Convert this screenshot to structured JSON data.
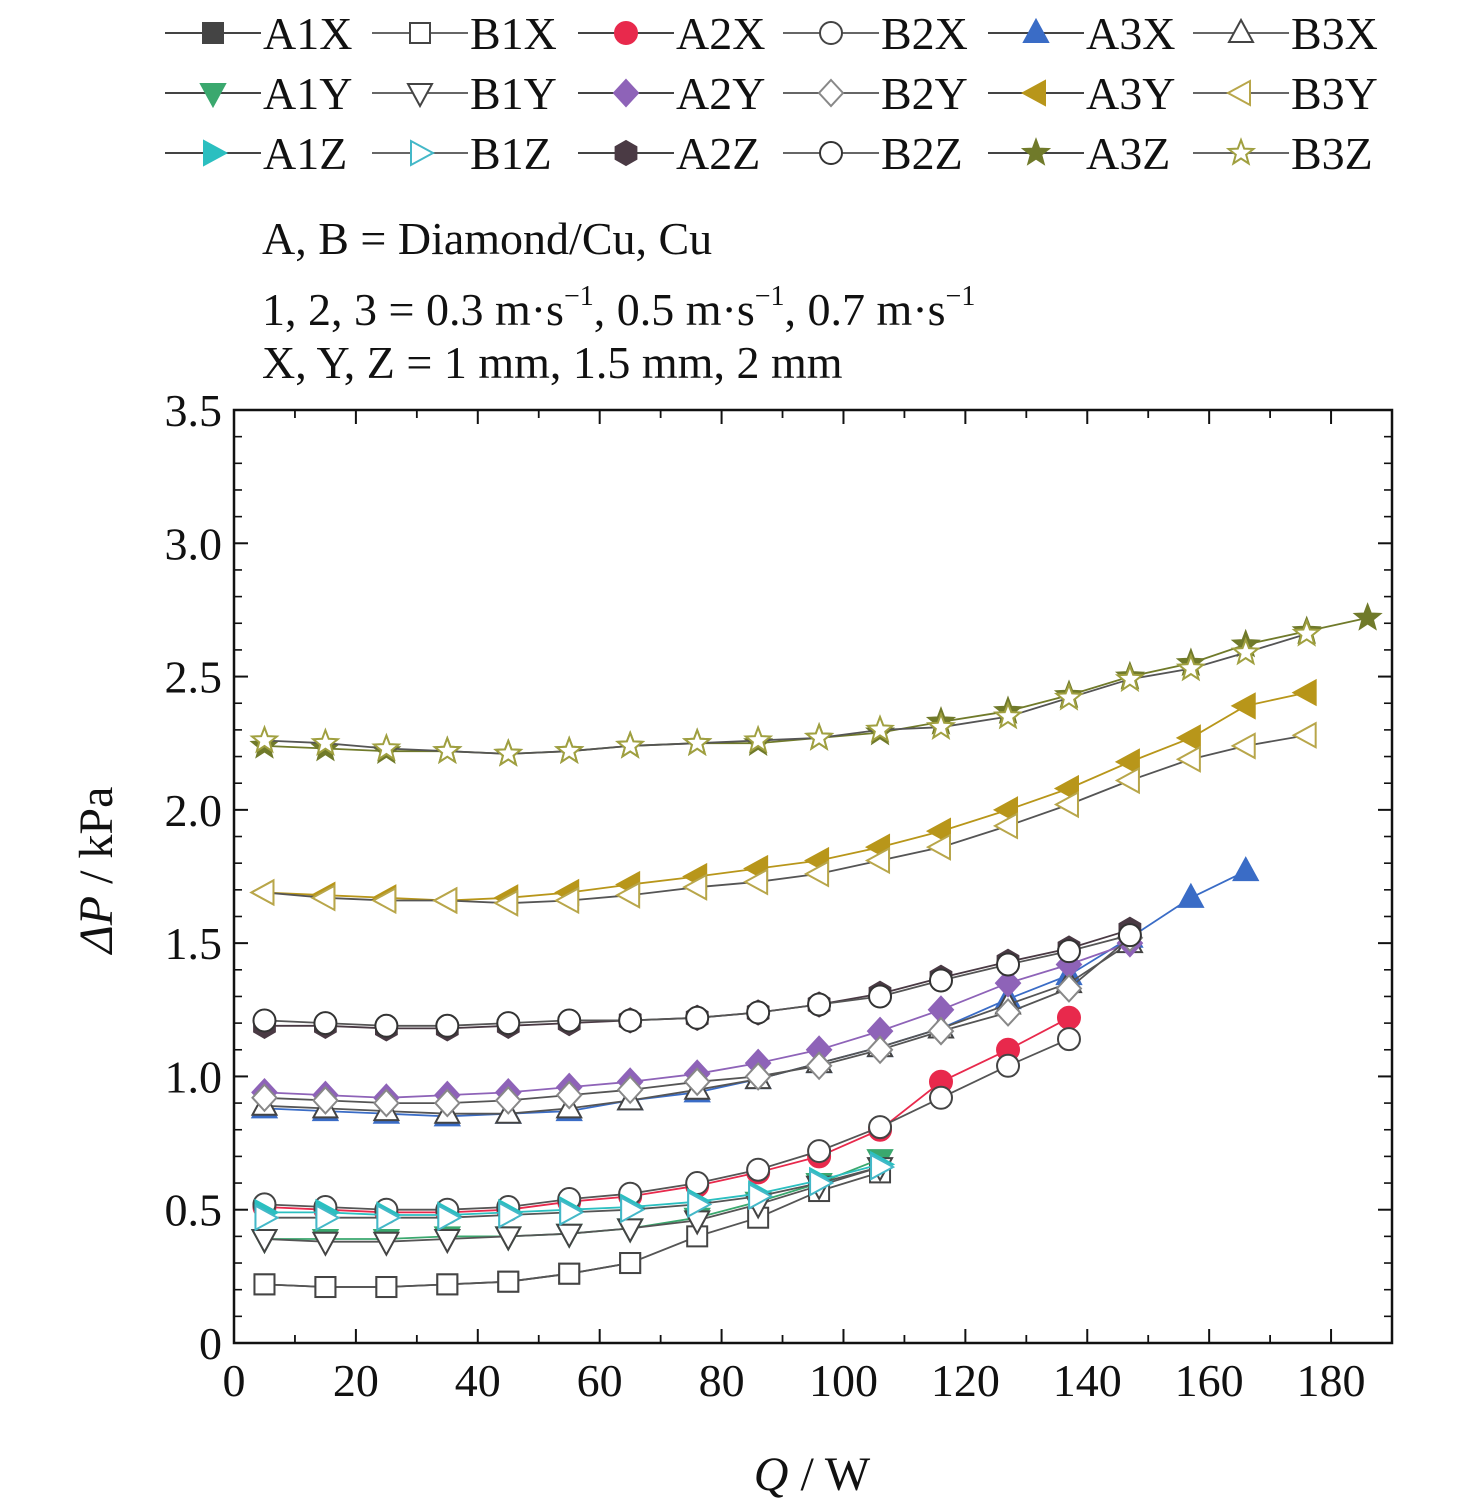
{
  "chart_data": {
    "type": "line",
    "xlabel_var": "Q",
    "xlabel_unit": " / W",
    "ylabel_var": "ΔP",
    "ylabel_unit": " / kPa",
    "xlim": [
      0,
      190
    ],
    "ylim": [
      0,
      3.5
    ],
    "x_ticks": [
      0,
      20,
      40,
      60,
      80,
      100,
      120,
      140,
      160,
      180
    ],
    "x_tick_labels": [
      "0",
      "20",
      "40",
      "60",
      "80",
      "100",
      "120",
      "140",
      "160",
      "180"
    ],
    "y_ticks": [
      0,
      0.5,
      1.0,
      1.5,
      2.0,
      2.5,
      3.0,
      3.5
    ],
    "y_tick_labels": [
      "0",
      "0.5",
      "1.0",
      "1.5",
      "2.0",
      "2.5",
      "3.0",
      "3.5"
    ],
    "grid": false,
    "legend_placement": "top",
    "annotations": [
      "A, B = Diamond/Cu, Cu",
      "1, 2, 3 = 0.3 m·s",
      "X, Y, Z = 1 mm, 1.5 mm, 2 mm"
    ],
    "annotation_parts": {
      "line2_a": "1, 2, 3 = 0.3 m·s",
      "line2_b": ", 0.5 m·s",
      "line2_c": ", 0.7 m·s",
      "sup": "−1"
    },
    "series": [
      {
        "name": "A1X",
        "color": "#444444",
        "marker": "square",
        "filled": true,
        "x": [
          5,
          15,
          25,
          35,
          45,
          55,
          65
        ],
        "y": [
          0.22,
          0.21,
          0.21,
          0.22,
          0.23,
          0.26,
          0.3
        ]
      },
      {
        "name": "B1X",
        "color": "#444444",
        "marker": "square",
        "filled": false,
        "x": [
          5,
          15,
          25,
          35,
          45,
          55,
          65,
          76,
          86,
          96,
          106
        ],
        "y": [
          0.22,
          0.21,
          0.21,
          0.22,
          0.23,
          0.26,
          0.3,
          0.4,
          0.47,
          0.57,
          0.64
        ]
      },
      {
        "name": "A2X",
        "color": "#e8294c",
        "marker": "circle",
        "filled": true,
        "x": [
          5,
          15,
          25,
          35,
          45,
          55,
          65,
          76,
          86,
          96,
          106,
          116,
          127,
          137
        ],
        "y": [
          0.51,
          0.5,
          0.49,
          0.49,
          0.5,
          0.53,
          0.55,
          0.59,
          0.64,
          0.7,
          0.8,
          0.98,
          1.1,
          1.22
        ]
      },
      {
        "name": "B2X",
        "color": "#555555",
        "marker": "circle",
        "filled": false,
        "x": [
          5,
          15,
          25,
          35,
          45,
          55,
          65,
          76,
          86,
          96,
          106,
          116,
          127,
          137
        ],
        "y": [
          0.52,
          0.51,
          0.5,
          0.5,
          0.51,
          0.54,
          0.56,
          0.6,
          0.65,
          0.72,
          0.81,
          0.92,
          1.04,
          1.14
        ]
      },
      {
        "name": "A3X",
        "color": "#3a6cc6",
        "marker": "triangle-up",
        "filled": true,
        "x": [
          5,
          15,
          25,
          35,
          45,
          55,
          65,
          76,
          86,
          96,
          106,
          116,
          127,
          137,
          147,
          157,
          166
        ],
        "y": [
          0.88,
          0.87,
          0.86,
          0.85,
          0.86,
          0.87,
          0.91,
          0.94,
          0.99,
          1.05,
          1.11,
          1.18,
          1.29,
          1.38,
          1.52,
          1.67,
          1.77
        ]
      },
      {
        "name": "B3X",
        "color": "#555555",
        "marker": "triangle-up",
        "filled": false,
        "x": [
          5,
          15,
          25,
          35,
          45,
          55,
          65,
          76,
          86,
          96,
          106,
          116,
          127,
          137,
          147
        ],
        "y": [
          0.89,
          0.88,
          0.87,
          0.86,
          0.86,
          0.88,
          0.91,
          0.95,
          0.99,
          1.05,
          1.11,
          1.18,
          1.27,
          1.35,
          1.5
        ]
      },
      {
        "name": "A1Y",
        "color": "#3aa86e",
        "marker": "triangle-down",
        "filled": true,
        "x": [
          5,
          15,
          25,
          35,
          45,
          55,
          65,
          76,
          86,
          96,
          106
        ],
        "y": [
          0.39,
          0.39,
          0.39,
          0.4,
          0.4,
          0.41,
          0.43,
          0.47,
          0.53,
          0.6,
          0.69
        ]
      },
      {
        "name": "B1Y",
        "color": "#555555",
        "marker": "triangle-down",
        "filled": false,
        "x": [
          5,
          15,
          25,
          35,
          45,
          55,
          65,
          76,
          86,
          96,
          106
        ],
        "y": [
          0.39,
          0.38,
          0.38,
          0.39,
          0.4,
          0.41,
          0.43,
          0.46,
          0.52,
          0.59,
          0.66
        ]
      },
      {
        "name": "A2Y",
        "color": "#8e63b8",
        "marker": "diamond",
        "filled": true,
        "x": [
          5,
          15,
          25,
          35,
          45,
          55,
          65,
          76,
          86,
          96,
          106,
          116,
          127,
          137,
          147
        ],
        "y": [
          0.94,
          0.93,
          0.92,
          0.93,
          0.94,
          0.96,
          0.98,
          1.01,
          1.05,
          1.1,
          1.17,
          1.25,
          1.35,
          1.42,
          1.5
        ]
      },
      {
        "name": "B2Y",
        "color": "#888888",
        "marker": "diamond",
        "filled": false,
        "x": [
          5,
          15,
          25,
          35,
          45,
          55,
          65,
          76,
          86,
          96,
          106,
          116,
          127,
          137,
          147
        ],
        "y": [
          0.92,
          0.91,
          0.9,
          0.9,
          0.91,
          0.93,
          0.95,
          0.98,
          1.0,
          1.04,
          1.1,
          1.17,
          1.24,
          1.33,
          1.52
        ]
      },
      {
        "name": "A3Y",
        "color": "#b8961a",
        "marker": "triangle-left",
        "filled": true,
        "x": [
          5,
          15,
          25,
          35,
          45,
          55,
          65,
          76,
          86,
          96,
          106,
          116,
          127,
          137,
          147,
          157,
          166,
          176
        ],
        "y": [
          1.69,
          1.68,
          1.67,
          1.66,
          1.67,
          1.69,
          1.72,
          1.75,
          1.78,
          1.81,
          1.86,
          1.92,
          2.0,
          2.08,
          2.18,
          2.27,
          2.39,
          2.44
        ]
      },
      {
        "name": "B3Y",
        "color": "#b8a64a",
        "marker": "triangle-left",
        "filled": false,
        "x": [
          5,
          15,
          25,
          35,
          45,
          55,
          65,
          76,
          86,
          96,
          106,
          116,
          127,
          137,
          147,
          157,
          166,
          176
        ],
        "y": [
          1.69,
          1.67,
          1.66,
          1.66,
          1.65,
          1.66,
          1.68,
          1.71,
          1.73,
          1.76,
          1.81,
          1.86,
          1.94,
          2.02,
          2.11,
          2.19,
          2.24,
          2.28
        ]
      },
      {
        "name": "A1Z",
        "color": "#2bbfc0",
        "marker": "triangle-right",
        "filled": true,
        "x": [
          5,
          15,
          25,
          35,
          45,
          55,
          65,
          76,
          86,
          96,
          106
        ],
        "y": [
          0.49,
          0.49,
          0.48,
          0.48,
          0.49,
          0.5,
          0.51,
          0.53,
          0.56,
          0.61,
          0.67
        ]
      },
      {
        "name": "B1Z",
        "color": "#44b8c8",
        "marker": "triangle-right",
        "filled": false,
        "x": [
          5,
          15,
          25,
          35,
          45,
          55,
          65,
          76,
          86,
          96,
          106
        ],
        "y": [
          0.47,
          0.47,
          0.47,
          0.47,
          0.48,
          0.49,
          0.5,
          0.52,
          0.55,
          0.6,
          0.66
        ]
      },
      {
        "name": "A2Z",
        "color": "#4a3a44",
        "marker": "hexagon",
        "filled": true,
        "x": [
          5,
          15,
          25,
          35,
          45,
          55,
          65,
          76,
          86,
          96,
          106,
          116,
          127,
          137,
          147
        ],
        "y": [
          1.19,
          1.19,
          1.18,
          1.18,
          1.19,
          1.2,
          1.21,
          1.22,
          1.24,
          1.27,
          1.31,
          1.37,
          1.43,
          1.48,
          1.55
        ]
      },
      {
        "name": "B2Z",
        "color": "#333333",
        "marker": "circle",
        "filled": false,
        "x": [
          5,
          15,
          25,
          35,
          45,
          55,
          65,
          76,
          86,
          96,
          106,
          116,
          127,
          137,
          147
        ],
        "y": [
          1.21,
          1.2,
          1.19,
          1.19,
          1.2,
          1.21,
          1.21,
          1.22,
          1.24,
          1.27,
          1.3,
          1.36,
          1.42,
          1.47,
          1.53
        ]
      },
      {
        "name": "A3Z",
        "color": "#707a2a",
        "marker": "star",
        "filled": true,
        "x": [
          5,
          15,
          25,
          35,
          45,
          55,
          65,
          76,
          86,
          96,
          106,
          116,
          127,
          137,
          147,
          157,
          166,
          176,
          186
        ],
        "y": [
          2.24,
          2.23,
          2.22,
          2.22,
          2.21,
          2.22,
          2.24,
          2.25,
          2.25,
          2.27,
          2.29,
          2.33,
          2.37,
          2.43,
          2.5,
          2.55,
          2.62,
          2.67,
          2.72
        ]
      },
      {
        "name": "B3Z",
        "color": "#a0a040",
        "marker": "star",
        "filled": false,
        "x": [
          5,
          15,
          25,
          35,
          45,
          55,
          65,
          76,
          86,
          96,
          106,
          116,
          127,
          137,
          147,
          157,
          166,
          176
        ],
        "y": [
          2.26,
          2.25,
          2.23,
          2.22,
          2.21,
          2.22,
          2.24,
          2.25,
          2.26,
          2.27,
          2.3,
          2.31,
          2.35,
          2.42,
          2.49,
          2.53,
          2.59,
          2.66
        ]
      }
    ]
  }
}
